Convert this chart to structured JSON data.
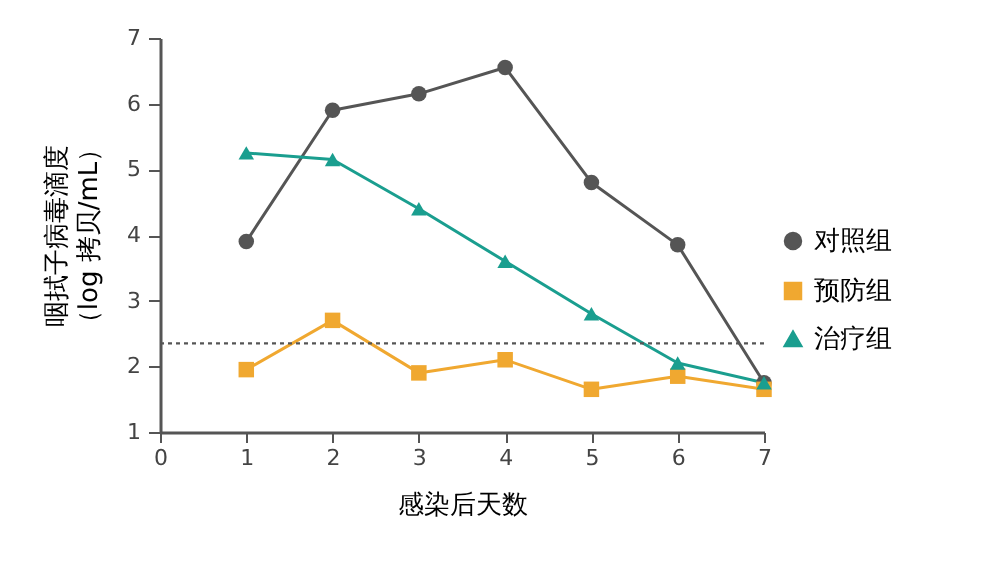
{
  "chart_data": {
    "type": "line",
    "xlabel": "感染后天数",
    "ylabel": "咽拭子病毒滴度（log 拷贝/mL）",
    "x": [
      1,
      2,
      3,
      4,
      5,
      6,
      7
    ],
    "series": [
      {
        "name": "对照组",
        "color": "#555555",
        "marker": "circle",
        "values": [
          3.9,
          5.9,
          6.15,
          6.55,
          4.8,
          3.85,
          1.75
        ]
      },
      {
        "name": "预防组",
        "color": "#f0a830",
        "marker": "square",
        "values": [
          1.95,
          2.7,
          1.9,
          2.1,
          1.65,
          1.85,
          1.65
        ]
      },
      {
        "name": "治疗组",
        "color": "#1a9e8f",
        "marker": "triangle",
        "values": [
          5.25,
          5.15,
          4.4,
          3.6,
          2.8,
          2.05,
          1.75
        ]
      }
    ],
    "xlim": [
      0,
      7
    ],
    "xticks": [
      0,
      1,
      2,
      3,
      4,
      5,
      6,
      7
    ],
    "ylim": [
      1,
      7
    ],
    "yticks": [
      1,
      2,
      3,
      4,
      5,
      6,
      7
    ],
    "ref_lines": [
      {
        "axis": "y",
        "value": 2.35,
        "line_style": "dotted",
        "color": "#555555"
      }
    ],
    "grid": false,
    "legend": "right",
    "line_style": "solid"
  }
}
